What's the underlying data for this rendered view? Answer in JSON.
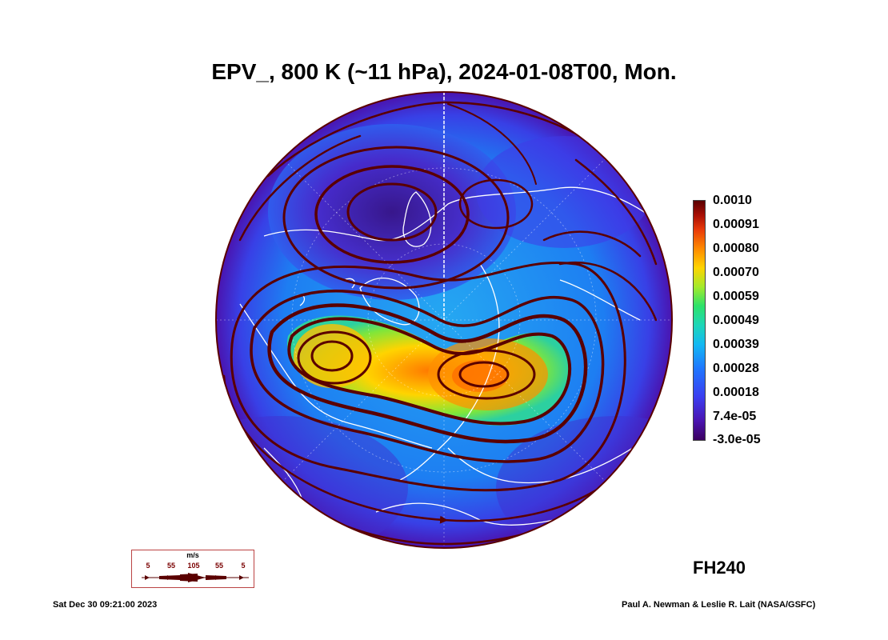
{
  "title": "EPV_, 800 K (~11 hPa), 2024-01-08T00, Mon.",
  "colorbar": {
    "ticks": [
      "0.0010",
      "0.00091",
      "0.00080",
      "0.00070",
      "0.00059",
      "0.00049",
      "0.00039",
      "0.00028",
      "0.00018",
      "7.4e-05",
      "-3.0e-05"
    ]
  },
  "forecast_hour": "FH240",
  "wind_legend": {
    "unit": "m/s",
    "values": [
      "5",
      "55",
      "105",
      "55",
      "5"
    ]
  },
  "footer": {
    "timestamp": "Sat Dec 30 09:21:00 2023",
    "credit": "Paul A. Newman & Leslie R. Lait (NASA/GSFC)"
  },
  "colors": {
    "low": "#3b005f",
    "mid": "#1f77ff",
    "high": "#ffd400",
    "max": "#5a0000",
    "streamline": "#5a0000",
    "coastline": "#ffffff"
  }
}
